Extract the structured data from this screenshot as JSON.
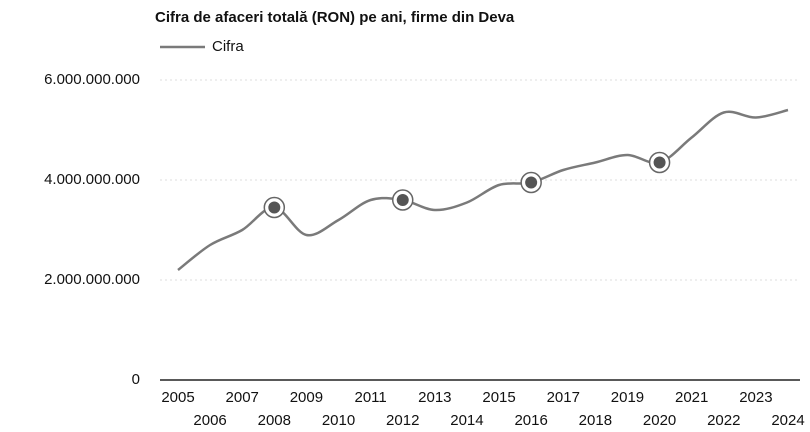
{
  "chart_data": {
    "type": "line",
    "title": "Cifra de afaceri totală (RON) pe ani, firme din Deva",
    "categories": [
      "2005",
      "2006",
      "2007",
      "2008",
      "2009",
      "2010",
      "2011",
      "2012",
      "2013",
      "2014",
      "2015",
      "2016",
      "2017",
      "2018",
      "2019",
      "2020",
      "2021",
      "2022",
      "2023",
      "2024"
    ],
    "series": [
      {
        "name": "Cifra",
        "color": "#7a7a7a",
        "values": [
          2200000000,
          2700000000,
          3000000000,
          3450000000,
          2900000000,
          3200000000,
          3600000000,
          3600000000,
          3400000000,
          3550000000,
          3900000000,
          3950000000,
          4200000000,
          4350000000,
          4500000000,
          4350000000,
          4850000000,
          5350000000,
          5250000000,
          5400000000
        ]
      }
    ],
    "marked": [
      "2008",
      "2012",
      "2016",
      "2020"
    ],
    "ylim": [
      0,
      6000000000
    ],
    "yticks": [
      0,
      {
        "value": 2000000000,
        "label": "2.000.000.000"
      },
      {
        "value": 4000000000,
        "label": "4.000.000.000"
      },
      {
        "value": 6000000000,
        "label": "6.000.000.000"
      }
    ],
    "grid": true,
    "legend": "top-left"
  }
}
